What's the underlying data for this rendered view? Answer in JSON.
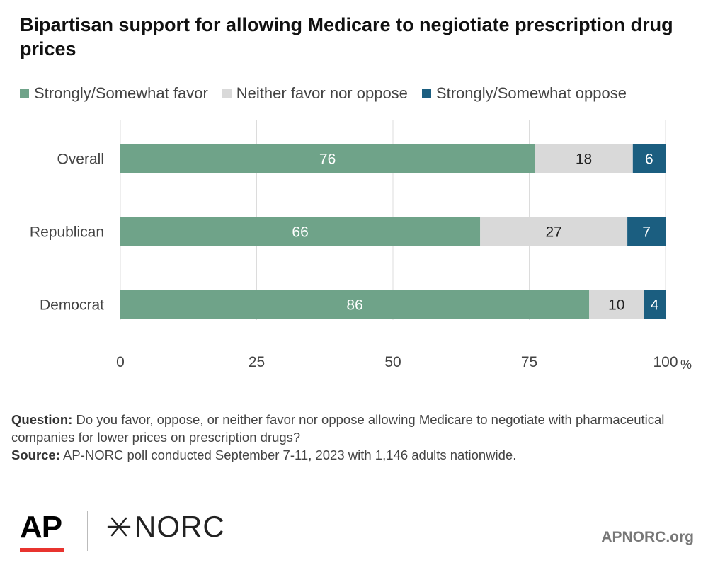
{
  "title": "Bipartisan support for allowing Medicare to negiotiate prescription drug prices",
  "footnote": {
    "question_label": "Question:",
    "question_text": " Do you favor, oppose, or neither favor nor oppose allowing Medicare to negotiate with pharmaceutical companies for lower prices on prescription drugs?",
    "source_label": "Source:",
    "source_text": " AP-NORC poll conducted September 7-11, 2023 with 1,146 adults nationwide."
  },
  "logos": {
    "ap": "AP",
    "norc": "NORC"
  },
  "site": "APNORC.org",
  "chart_data": {
    "type": "bar",
    "orientation": "horizontal",
    "stacked": true,
    "categories": [
      "Overall",
      "Republican",
      "Democrat"
    ],
    "series": [
      {
        "name": "Strongly/Somewhat favor",
        "values": [
          76,
          66,
          86
        ],
        "color": "#6fa389",
        "label_color": "#ffffff"
      },
      {
        "name": "Neither favor nor oppose",
        "values": [
          18,
          27,
          10
        ],
        "color": "#d9d9d9",
        "label_color": "#222222"
      },
      {
        "name": "Strongly/Somewhat oppose",
        "values": [
          6,
          7,
          4
        ],
        "color": "#1b5e80",
        "label_color": "#ffffff"
      }
    ],
    "xlim": [
      0,
      100
    ],
    "xticks": [
      0,
      25,
      50,
      75,
      100
    ],
    "x_unit": "%",
    "grid": true,
    "legend_position": "top-left"
  }
}
